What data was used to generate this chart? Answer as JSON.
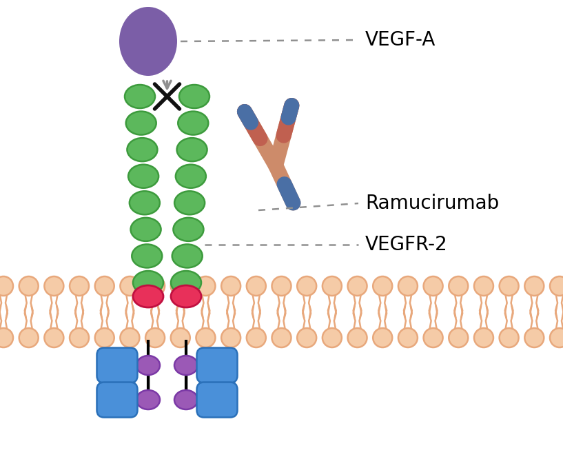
{
  "bg_color": "#ffffff",
  "vegf_color": "#7B5EA7",
  "arrow_color": "#909090",
  "x_mark_color": "#111111",
  "green_color": "#5CB85C",
  "green_outline": "#3d9b3d",
  "red_color": "#E8305A",
  "red_outline": "#c01040",
  "blue_color": "#4A90D9",
  "blue_outline": "#2a70b9",
  "purple_color": "#9B59B6",
  "purple_outline": "#7B39A6",
  "membrane_fill": "#F5CBA7",
  "membrane_outline": "#E8A87C",
  "antibody_body_color": "#CD8B6A",
  "antibody_outline": "#b06040",
  "antibody_tip_color": "#4A6FA5",
  "antibody_tip_red": "#c06050",
  "dashed_line_color": "#909090",
  "vegf_label": "VEGF-A",
  "ramucirumab_label": "Ramucirumab",
  "vegfr2_label": "VEGFR-2",
  "figsize": [
    8.17,
    6.63
  ],
  "dpi": 100,
  "xlim": [
    0,
    817
  ],
  "ylim": [
    0,
    663
  ]
}
